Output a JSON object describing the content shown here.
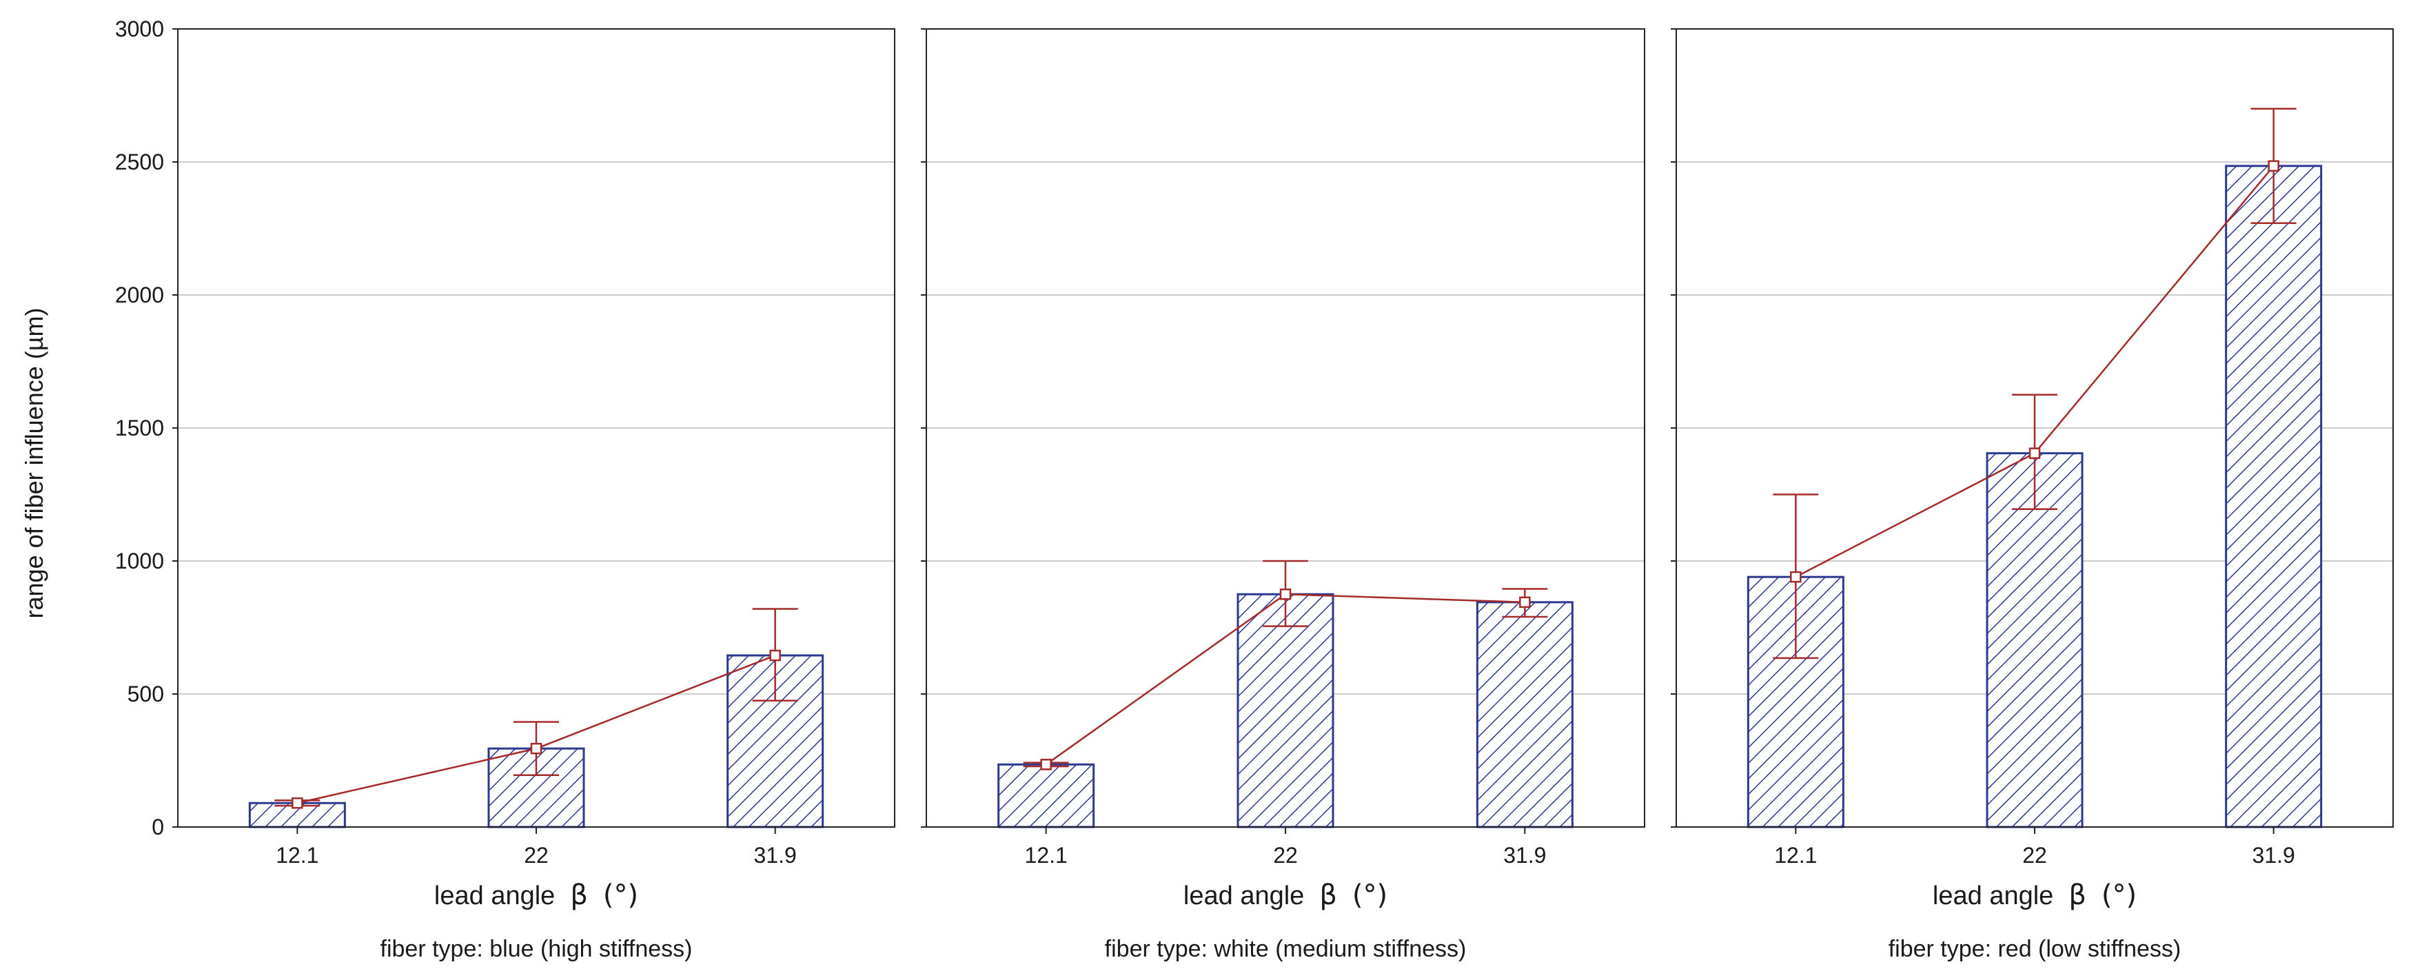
{
  "chart_data": {
    "type": "bar",
    "ylabel": "range of fiber influence (µm)",
    "ylim": [
      0,
      3000
    ],
    "yticks": [
      0,
      500,
      1000,
      1500,
      2000,
      2500,
      3000
    ],
    "grid": "horizontal",
    "colors": {
      "bar_stroke": "#2b3990",
      "bar_hatch": "#2b3990",
      "line": "#a52a2a",
      "grid": "#cccccc",
      "axis": "#222222"
    },
    "panels": [
      {
        "categories": [
          "12.1",
          "22",
          "31.9"
        ],
        "xlabel_text": "lead angle",
        "xlabel_symbol": "β",
        "xlabel_unit": "(°)",
        "caption": "fiber type: blue (high stiffness)",
        "values": [
          90,
          295,
          645
        ],
        "error_low": [
          80,
          195,
          475
        ],
        "error_high": [
          100,
          395,
          820
        ]
      },
      {
        "categories": [
          "12.1",
          "22",
          "31.9"
        ],
        "xlabel_text": "lead angle",
        "xlabel_symbol": "β",
        "xlabel_unit": "(°)",
        "caption": "fiber type: white (medium stiffness)",
        "values": [
          235,
          875,
          845
        ],
        "error_low": [
          228,
          755,
          790
        ],
        "error_high": [
          242,
          1000,
          895
        ]
      },
      {
        "categories": [
          "12.1",
          "22",
          "31.9"
        ],
        "xlabel_text": "lead angle",
        "xlabel_symbol": "β",
        "xlabel_unit": "(°)",
        "caption": "fiber type: red (low stiffness)",
        "values": [
          940,
          1405,
          2485
        ],
        "error_low": [
          635,
          1195,
          2270
        ],
        "error_high": [
          1250,
          1625,
          2700
        ]
      }
    ]
  }
}
